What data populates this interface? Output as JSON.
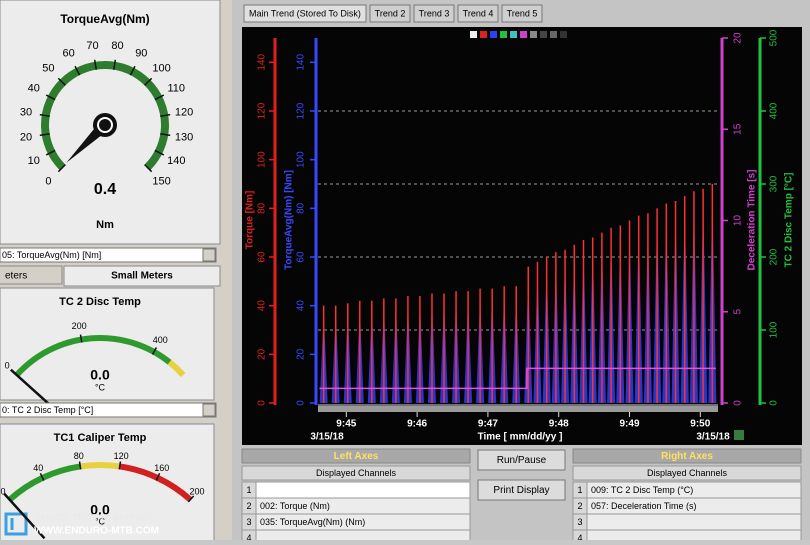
{
  "left_panel": {
    "main_gauge": {
      "title": "TorqueAvg(Nm)",
      "range": [
        0,
        150
      ],
      "ticks": [
        0,
        10,
        20,
        30,
        40,
        50,
        60,
        70,
        80,
        90,
        100,
        110,
        120,
        130,
        140,
        150
      ],
      "bands": [
        {
          "from": 0,
          "to": 150,
          "color": "#2e7d2e"
        }
      ],
      "value": 0.4,
      "unit": "Nm"
    },
    "main_select": "05: TorqueAvg(Nm) [Nm]",
    "tabs": [
      "eters",
      "Small Meters"
    ],
    "small_gauges": [
      {
        "title": "TC 2 Disc Temp",
        "range": [
          0,
          500
        ],
        "ticks": [
          0,
          200,
          400
        ],
        "bands": [
          {
            "from": 0,
            "to": 450,
            "color": "#2e9a2e"
          },
          {
            "from": 450,
            "to": 500,
            "color": "#e8d040"
          }
        ],
        "value": 0,
        "value_label": "0.0",
        "unit": "°C",
        "select": "0: TC 2 Disc Temp [°C]"
      },
      {
        "title": "TC1 Caliper Temp",
        "range": [
          0,
          200
        ],
        "ticks": [
          0,
          40,
          80,
          120,
          160,
          200
        ],
        "bands": [
          {
            "from": 0,
            "to": 80,
            "color": "#2e9a2e"
          },
          {
            "from": 80,
            "to": 120,
            "color": "#e8d040"
          },
          {
            "from": 120,
            "to": 200,
            "color": "#d02020"
          }
        ],
        "value": 0,
        "value_label": "0.0",
        "unit": "°C"
      }
    ]
  },
  "watermark": {
    "credit": "PHOTO: TRISTAN WORSEY",
    "site": "WWW.ENDURO-MTB.COM"
  },
  "trend_tabs": [
    "Main Trend (Stored To Disk)",
    "Trend 2",
    "Trend 3",
    "Trend 4",
    "Trend 5"
  ],
  "chart_data": {
    "type": "trend",
    "axes": [
      {
        "label": "Torque [Nm]",
        "color": "#e02020",
        "lim": [
          0,
          150
        ],
        "ticks": [
          0,
          20,
          40,
          60,
          80,
          100,
          120,
          140
        ]
      },
      {
        "label": "TorqueAvg(Nm) [Nm]",
        "color": "#3848ff",
        "lim": [
          0,
          150
        ],
        "ticks": [
          0,
          20,
          40,
          60,
          80,
          100,
          120,
          140
        ]
      },
      {
        "label": "Deceleration Time [s]",
        "color": "#d040d0",
        "lim": [
          0,
          20
        ],
        "ticks": [
          0,
          5,
          10,
          15,
          20
        ]
      },
      {
        "label": "TC 2 Disc Temp [°C]",
        "color": "#20c040",
        "lim": [
          0,
          500
        ],
        "ticks": [
          0,
          100,
          200,
          300,
          400,
          500
        ],
        "grid": true
      }
    ],
    "x_label": "Time [ mm/dd/yy ]",
    "x_dates": [
      "3/15/18",
      "3/15/18"
    ],
    "xlim": [
      44.6,
      50.25
    ],
    "xticks": [
      {
        "value": 45,
        "label": "9:45"
      },
      {
        "value": 46,
        "label": "9:46"
      },
      {
        "value": 47,
        "label": "9:47"
      },
      {
        "value": 48,
        "label": "9:48"
      },
      {
        "value": 49,
        "label": "9:49"
      },
      {
        "value": 50,
        "label": "9:50"
      }
    ],
    "x": [
      44.68,
      44.85,
      45.02,
      45.19,
      45.36,
      45.53,
      45.7,
      45.87,
      46.04,
      46.21,
      46.38,
      46.55,
      46.72,
      46.89,
      47.06,
      47.23,
      47.4,
      47.57,
      47.7,
      47.83,
      47.96,
      48.09,
      48.22,
      48.35,
      48.48,
      48.61,
      48.74,
      48.87,
      49,
      49.13,
      49.26,
      49.39,
      49.52,
      49.65,
      49.78,
      49.91,
      50.04,
      50.17
    ],
    "series": [
      {
        "name": "TorqueAvg(Nm)",
        "axis": 1,
        "color": "#3040f0",
        "values": [
          38,
          38,
          39,
          40,
          40,
          41,
          41,
          42,
          42,
          43,
          43,
          44,
          44,
          45,
          45,
          46,
          46,
          53,
          55,
          57,
          59,
          60,
          62,
          64,
          65,
          67,
          69,
          70,
          72,
          74,
          75,
          77,
          79,
          80,
          82,
          84,
          85,
          87
        ]
      },
      {
        "name": "Torque",
        "axis": 0,
        "color": "#ff3030",
        "values": [
          40,
          40,
          41,
          42,
          42,
          43,
          43,
          44,
          44,
          45,
          45,
          46,
          46,
          47,
          47,
          48,
          48,
          56,
          58,
          60,
          62,
          63,
          65,
          67,
          68,
          70,
          72,
          73,
          75,
          77,
          78,
          80,
          82,
          83,
          85,
          87,
          88,
          90
        ]
      },
      {
        "name": "Deceleration Time",
        "axis": 2,
        "color": "#e050e0",
        "x": [
          44.62,
          47.55,
          47.55,
          50.22
        ],
        "values": [
          0.8,
          0.8,
          1.9,
          1.9
        ]
      }
    ]
  },
  "left_axes": {
    "title": "Left Axes",
    "header": "Displayed Channels",
    "rows": [
      {
        "n": 1
      },
      {
        "n": 2,
        "channel": "002: Torque (Nm)"
      },
      {
        "n": 3,
        "channel": "035: TorqueAvg(Nm) (Nm)"
      },
      {
        "n": 4
      }
    ]
  },
  "buttons": [
    "Run/Pause",
    "Print Display"
  ],
  "right_axes": {
    "title": "Right Axes",
    "header": "Displayed Channels",
    "rows": [
      {
        "n": 1,
        "channel": "009: TC 2 Disc Temp (°C)"
      },
      {
        "n": 2,
        "channel": "057: Deceleration Time (s)"
      },
      {
        "n": 3
      },
      {
        "n": 4
      }
    ]
  }
}
